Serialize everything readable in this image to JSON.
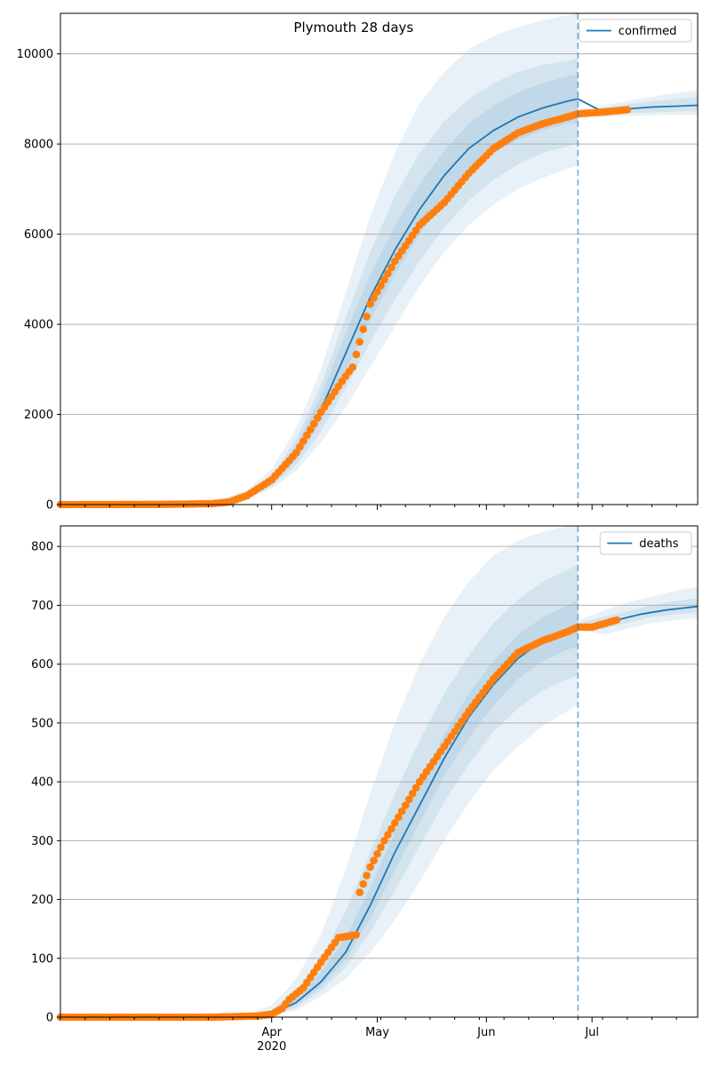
{
  "colors": {
    "model": "#1f77b4",
    "observed": "#ff7f0e",
    "band": "#1f77b4",
    "grid": "#b0b0b0",
    "cutoff": "#1f77b4"
  },
  "x_axis": {
    "range": [
      "2020-02-01",
      "2020-07-31"
    ],
    "major_ticks": [
      {
        "date": "2020-04-01",
        "label": "Apr",
        "sublabel": "2020"
      },
      {
        "date": "2020-05-01",
        "label": "May",
        "sublabel": ""
      },
      {
        "date": "2020-06-01",
        "label": "Jun",
        "sublabel": ""
      },
      {
        "date": "2020-07-01",
        "label": "Jul",
        "sublabel": ""
      }
    ]
  },
  "chart_data": [
    {
      "type": "line",
      "title": "Plymouth 28 days",
      "legend": {
        "label": "confirmed",
        "placement": "top-right"
      },
      "ylim": [
        0,
        10900
      ],
      "yticks": [
        0,
        2000,
        4000,
        6000,
        8000,
        10000
      ],
      "ytick_labels": [
        "0",
        "2000",
        "4000",
        "6000",
        "8000",
        "10000"
      ],
      "grid": "horizontal",
      "forecast_cutoff": "2020-06-27",
      "series": [
        {
          "name": "confirmed",
          "kind": "model-median",
          "x": [
            "2020-02-01",
            "2020-03-01",
            "2020-03-15",
            "2020-03-25",
            "2020-04-01",
            "2020-04-08",
            "2020-04-15",
            "2020-04-22",
            "2020-04-29",
            "2020-05-06",
            "2020-05-13",
            "2020-05-20",
            "2020-05-27",
            "2020-06-03",
            "2020-06-10",
            "2020-06-17",
            "2020-06-24",
            "2020-06-27",
            "2020-07-04",
            "2020-07-11",
            "2020-07-18",
            "2020-07-25",
            "2020-07-31"
          ],
          "y": [
            0,
            5,
            30,
            200,
            500,
            1150,
            2100,
            3350,
            4600,
            5650,
            6550,
            7300,
            7900,
            8300,
            8600,
            8800,
            8950,
            9000,
            8720,
            8780,
            8820,
            8840,
            8860
          ]
        },
        {
          "name": "observed",
          "kind": "observed-points",
          "x": [
            "2020-02-01",
            "2020-03-01",
            "2020-03-15",
            "2020-03-20",
            "2020-03-25",
            "2020-04-01",
            "2020-04-08",
            "2020-04-15",
            "2020-04-22",
            "2020-04-24",
            "2020-04-29",
            "2020-05-06",
            "2020-05-13",
            "2020-05-20",
            "2020-05-27",
            "2020-06-03",
            "2020-06-10",
            "2020-06-17",
            "2020-06-24",
            "2020-06-27",
            "2020-07-04",
            "2020-07-11"
          ],
          "y": [
            0,
            5,
            20,
            60,
            200,
            550,
            1150,
            2050,
            2850,
            3050,
            4450,
            5400,
            6200,
            6700,
            7350,
            7900,
            8250,
            8450,
            8600,
            8670,
            8710,
            8760
          ]
        }
      ],
      "bands": [
        {
          "x": [
            "2020-02-01",
            "2020-03-01",
            "2020-03-15",
            "2020-03-25",
            "2020-04-01",
            "2020-04-08",
            "2020-04-15",
            "2020-04-22",
            "2020-04-29",
            "2020-05-06",
            "2020-05-13",
            "2020-05-20",
            "2020-05-27",
            "2020-06-03",
            "2020-06-10",
            "2020-06-17",
            "2020-06-24",
            "2020-06-27"
          ],
          "lower": [
            0,
            4,
            20,
            130,
            350,
            750,
            1380,
            2150,
            3050,
            3950,
            4850,
            5600,
            6200,
            6650,
            7000,
            7250,
            7450,
            7520
          ],
          "upper": [
            0,
            7,
            45,
            320,
            780,
            1700,
            3000,
            4700,
            6400,
            7800,
            8900,
            9600,
            10100,
            10400,
            10600,
            10750,
            10850,
            10900
          ]
        },
        {
          "x": [
            "2020-02-01",
            "2020-03-01",
            "2020-03-15",
            "2020-03-25",
            "2020-04-01",
            "2020-04-08",
            "2020-04-15",
            "2020-04-22",
            "2020-04-29",
            "2020-05-06",
            "2020-05-13",
            "2020-05-20",
            "2020-05-27",
            "2020-06-03",
            "2020-06-10",
            "2020-06-17",
            "2020-06-24",
            "2020-06-27"
          ],
          "lower": [
            0,
            4,
            24,
            150,
            400,
            880,
            1620,
            2580,
            3600,
            4550,
            5400,
            6150,
            6750,
            7200,
            7550,
            7800,
            7950,
            8000
          ],
          "upper": [
            0,
            6,
            38,
            270,
            650,
            1450,
            2650,
            4150,
            5600,
            6850,
            7800,
            8500,
            9000,
            9350,
            9600,
            9750,
            9850,
            9900
          ]
        },
        {
          "x": [
            "2020-02-01",
            "2020-03-01",
            "2020-03-15",
            "2020-03-25",
            "2020-04-01",
            "2020-04-08",
            "2020-04-15",
            "2020-04-22",
            "2020-04-29",
            "2020-05-06",
            "2020-05-13",
            "2020-05-20",
            "2020-05-27",
            "2020-06-03",
            "2020-06-10",
            "2020-06-17",
            "2020-06-24",
            "2020-06-27"
          ],
          "lower": [
            0,
            5,
            27,
            170,
            450,
            1000,
            1850,
            2950,
            4100,
            5100,
            6000,
            6750,
            7350,
            7800,
            8100,
            8300,
            8450,
            8450
          ],
          "upper": [
            0,
            6,
            34,
            240,
            570,
            1320,
            2400,
            3800,
            5100,
            6200,
            7100,
            7850,
            8450,
            8850,
            9150,
            9350,
            9500,
            9550
          ]
        },
        {
          "x": [
            "2020-06-27",
            "2020-07-04",
            "2020-07-11",
            "2020-07-18",
            "2020-07-25",
            "2020-07-31"
          ],
          "lower": [
            8650,
            8600,
            8620,
            8640,
            8650,
            8650
          ],
          "upper": [
            8750,
            8860,
            8950,
            9050,
            9130,
            9200
          ]
        },
        {
          "x": [
            "2020-06-27",
            "2020-07-04",
            "2020-07-11",
            "2020-07-18",
            "2020-07-25",
            "2020-07-31"
          ],
          "lower": [
            8680,
            8650,
            8680,
            8700,
            8720,
            8730
          ],
          "upper": [
            8730,
            8800,
            8880,
            8950,
            9000,
            9050
          ]
        }
      ]
    },
    {
      "type": "line",
      "title": "",
      "legend": {
        "label": "deaths",
        "placement": "top-right"
      },
      "ylim": [
        0,
        835
      ],
      "yticks": [
        0,
        100,
        200,
        300,
        400,
        500,
        600,
        700,
        800
      ],
      "ytick_labels": [
        "0",
        "100",
        "200",
        "300",
        "400",
        "500",
        "600",
        "700",
        "800"
      ],
      "grid": "horizontal",
      "forecast_cutoff": "2020-06-27",
      "series": [
        {
          "name": "deaths",
          "kind": "model-median",
          "x": [
            "2020-02-01",
            "2020-03-15",
            "2020-03-25",
            "2020-04-01",
            "2020-04-08",
            "2020-04-15",
            "2020-04-22",
            "2020-04-29",
            "2020-05-06",
            "2020-05-13",
            "2020-05-20",
            "2020-05-27",
            "2020-06-03",
            "2020-06-10",
            "2020-06-17",
            "2020-06-24",
            "2020-06-27",
            "2020-07-01",
            "2020-07-08",
            "2020-07-15",
            "2020-07-22",
            "2020-07-31"
          ],
          "y": [
            0,
            0,
            1,
            5,
            25,
            60,
            110,
            190,
            280,
            360,
            440,
            510,
            565,
            610,
            640,
            660,
            668,
            663,
            675,
            685,
            692,
            698
          ]
        },
        {
          "name": "observed",
          "kind": "observed-points",
          "x": [
            "2020-02-01",
            "2020-03-15",
            "2020-03-28",
            "2020-04-01",
            "2020-04-04",
            "2020-04-06",
            "2020-04-10",
            "2020-04-14",
            "2020-04-17",
            "2020-04-20",
            "2020-04-25",
            "2020-04-26",
            "2020-04-29",
            "2020-05-03",
            "2020-05-08",
            "2020-05-13",
            "2020-05-20",
            "2020-05-27",
            "2020-06-03",
            "2020-06-10",
            "2020-06-17",
            "2020-06-24",
            "2020-06-27",
            "2020-07-01",
            "2020-07-08"
          ],
          "y": [
            0,
            0,
            2,
            5,
            15,
            30,
            50,
            85,
            110,
            135,
            140,
            212,
            255,
            300,
            350,
            400,
            460,
            520,
            575,
            620,
            640,
            655,
            663,
            663,
            675
          ]
        }
      ],
      "bands": [
        {
          "x": [
            "2020-02-01",
            "2020-03-15",
            "2020-03-25",
            "2020-04-01",
            "2020-04-08",
            "2020-04-15",
            "2020-04-22",
            "2020-04-29",
            "2020-05-06",
            "2020-05-13",
            "2020-05-20",
            "2020-05-27",
            "2020-06-03",
            "2020-06-10",
            "2020-06-17",
            "2020-06-24",
            "2020-06-27"
          ],
          "lower": [
            0,
            0,
            0,
            2,
            12,
            35,
            65,
            110,
            165,
            230,
            300,
            365,
            420,
            460,
            495,
            520,
            530
          ],
          "upper": [
            0,
            1,
            5,
            20,
            65,
            140,
            250,
            380,
            500,
            600,
            680,
            740,
            785,
            810,
            825,
            835,
            835
          ]
        },
        {
          "x": [
            "2020-02-01",
            "2020-03-15",
            "2020-03-25",
            "2020-04-01",
            "2020-04-08",
            "2020-04-15",
            "2020-04-22",
            "2020-04-29",
            "2020-05-06",
            "2020-05-13",
            "2020-05-20",
            "2020-05-27",
            "2020-06-03",
            "2020-06-10",
            "2020-06-17",
            "2020-06-24",
            "2020-06-27"
          ],
          "lower": [
            0,
            0,
            0,
            3,
            17,
            45,
            85,
            145,
            215,
            290,
            365,
            430,
            485,
            525,
            555,
            575,
            580
          ],
          "upper": [
            0,
            1,
            3,
            12,
            45,
            100,
            180,
            280,
            380,
            470,
            550,
            615,
            670,
            710,
            740,
            760,
            770
          ]
        },
        {
          "x": [
            "2020-02-01",
            "2020-03-15",
            "2020-03-25",
            "2020-04-01",
            "2020-04-08",
            "2020-04-15",
            "2020-04-22",
            "2020-04-29",
            "2020-05-06",
            "2020-05-13",
            "2020-05-20",
            "2020-05-27",
            "2020-06-03",
            "2020-06-10",
            "2020-06-17",
            "2020-06-24",
            "2020-06-27"
          ],
          "lower": [
            0,
            0,
            0,
            4,
            21,
            52,
            98,
            168,
            250,
            330,
            410,
            475,
            530,
            575,
            605,
            625,
            630
          ],
          "upper": [
            0,
            0,
            2,
            7,
            32,
            76,
            135,
            220,
            315,
            400,
            480,
            550,
            605,
            650,
            680,
            700,
            710
          ]
        },
        {
          "x": [
            "2020-06-27",
            "2020-07-04",
            "2020-07-11",
            "2020-07-18",
            "2020-07-25",
            "2020-07-31"
          ],
          "lower": [
            660,
            650,
            660,
            670,
            675,
            678
          ],
          "upper": [
            675,
            690,
            705,
            715,
            725,
            732
          ]
        },
        {
          "x": [
            "2020-06-27",
            "2020-07-04",
            "2020-07-11",
            "2020-07-18",
            "2020-07-25",
            "2020-07-31"
          ],
          "lower": [
            663,
            660,
            670,
            680,
            685,
            688
          ],
          "upper": [
            670,
            680,
            690,
            700,
            708,
            712
          ]
        }
      ]
    }
  ]
}
